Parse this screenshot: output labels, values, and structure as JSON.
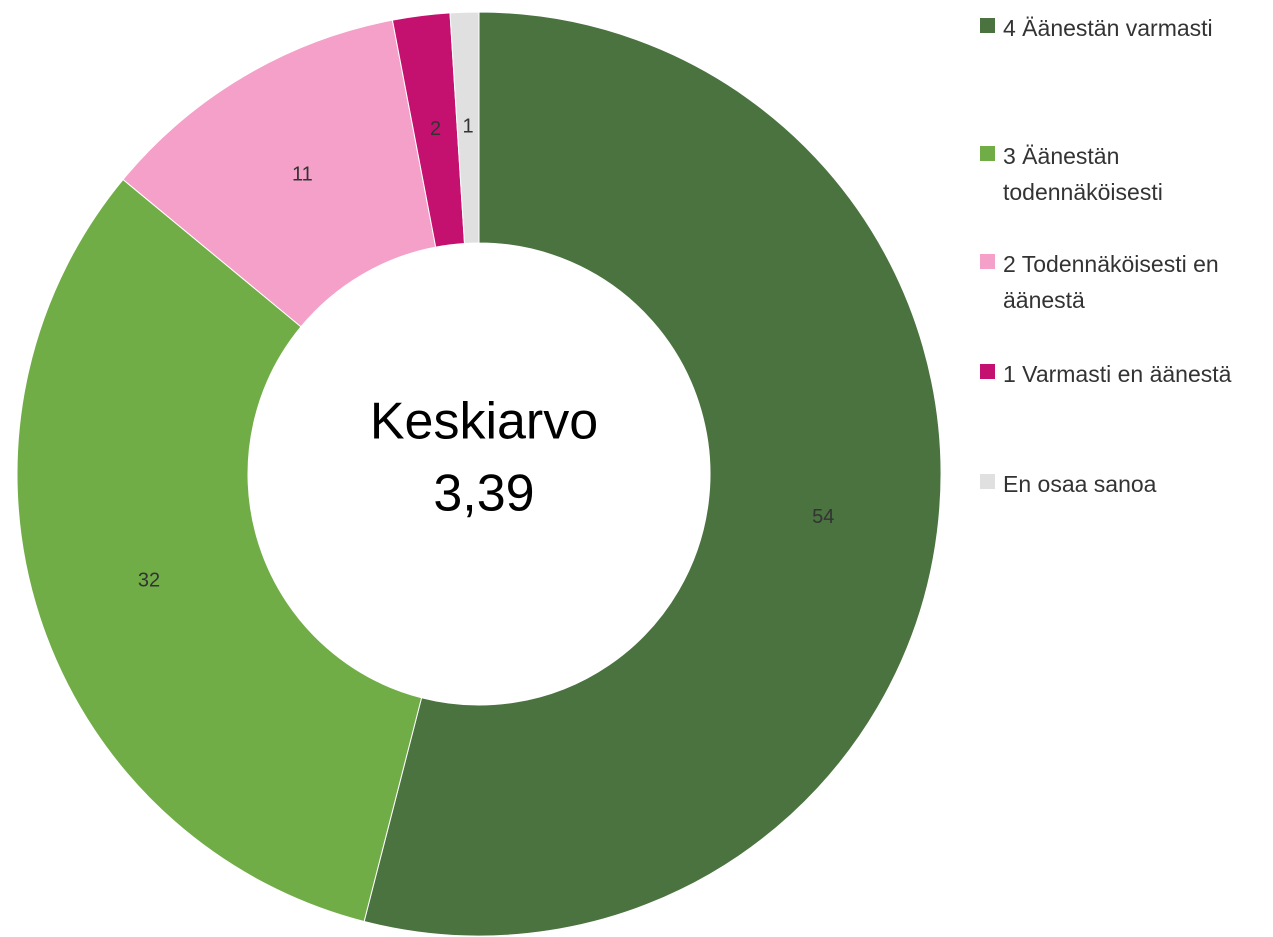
{
  "chart_data": {
    "type": "donut",
    "categories": [
      "4 Äänestän varmasti",
      "3 Äänestän todennäköisesti",
      "2 Todennäköisesti en äänestä",
      "1 Varmasti en äänestä",
      "En osaa sanoa"
    ],
    "values": [
      54,
      32,
      11,
      2,
      1
    ],
    "colors": [
      "#4a7340",
      "#70ad47",
      "#f4a0c8",
      "#c4106e",
      "#e0e0e0"
    ],
    "center_text": [
      "Keskiarvo",
      "3,39"
    ],
    "legend": "right"
  }
}
